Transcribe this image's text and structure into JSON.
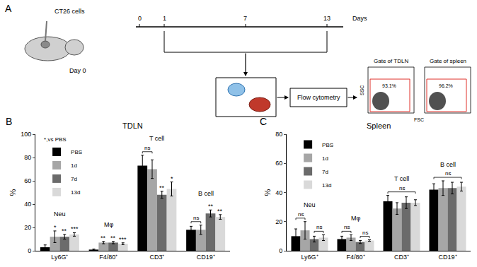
{
  "diagram": {
    "panel": "A",
    "injection": "CT26 cells",
    "injection_day": "Day 0",
    "timeline": {
      "ticks": [
        "0",
        "1",
        "7",
        "13"
      ],
      "unit": "Days"
    },
    "process": "Flow cytometry",
    "gates": [
      {
        "title": "Gate of TDLN",
        "value": "93.1%"
      },
      {
        "title": "Gate of spleen",
        "value": "96.2%"
      }
    ],
    "gate_axes": {
      "x": "FSC",
      "y": "SSC"
    }
  },
  "chart_data": [
    {
      "panel": "B",
      "type": "bar",
      "title": "TDLN",
      "y_label": "%",
      "note": "*,vs PBS",
      "categories": [
        "Ly6G⁺",
        "F4/80⁺",
        "CD3⁺",
        "CD19⁺"
      ],
      "group_labels": [
        "Neu",
        "Mφ",
        "T cell",
        "B cell"
      ],
      "series": [
        {
          "name": "PBS",
          "color": "#000000",
          "values": [
            3,
            1,
            73,
            18
          ],
          "errors": [
            2,
            0.5,
            9,
            3
          ],
          "significance": [
            null,
            null,
            null,
            null
          ]
        },
        {
          "name": "1d",
          "color": "#a6a6a6",
          "values": [
            12,
            7,
            70,
            18
          ],
          "errors": [
            5,
            1,
            8,
            4
          ],
          "significance": [
            "*",
            "**",
            null,
            null
          ]
        },
        {
          "name": "7d",
          "color": "#6b6b6b",
          "values": [
            12,
            7,
            48,
            32
          ],
          "errors": [
            2,
            1,
            3,
            3
          ],
          "significance": [
            "**",
            "**",
            "**",
            "**"
          ]
        },
        {
          "name": "13d",
          "color": "#d9d9d9",
          "values": [
            14,
            6,
            53,
            29
          ],
          "errors": [
            1.5,
            0.8,
            6,
            2
          ],
          "significance": [
            "***",
            "***",
            "*",
            "**"
          ]
        }
      ],
      "brackets": [
        {
          "category": "CD3⁺",
          "series": [
            "PBS",
            "1d"
          ],
          "label": "ns"
        },
        {
          "category": "CD19⁺",
          "series": [
            "PBS",
            "1d"
          ],
          "label": "ns"
        }
      ],
      "ylim": [
        0,
        100
      ],
      "yticks": [
        0,
        20,
        40,
        60,
        80,
        100
      ],
      "grid": false,
      "legend": "upper left"
    },
    {
      "panel": "C",
      "type": "bar",
      "title": "Spleen",
      "y_label": "%",
      "categories": [
        "Ly6G⁺",
        "F4/80⁺",
        "CD3⁺",
        "CD19⁺"
      ],
      "group_labels": [
        "Neu",
        "Mφ",
        "T cell",
        "B cell"
      ],
      "series": [
        {
          "name": "PBS",
          "color": "#000000",
          "values": [
            10,
            8,
            34,
            42
          ],
          "errors": [
            5,
            2,
            4,
            4
          ]
        },
        {
          "name": "1d",
          "color": "#a6a6a6",
          "values": [
            14,
            9,
            29,
            43
          ],
          "errors": [
            6,
            2,
            4,
            5
          ]
        },
        {
          "name": "7d",
          "color": "#6b6b6b",
          "values": [
            8,
            6,
            33,
            43
          ],
          "errors": [
            2,
            1,
            4,
            4
          ]
        },
        {
          "name": "13d",
          "color": "#d9d9d9",
          "values": [
            9,
            7,
            33,
            44
          ],
          "errors": [
            2,
            0.5,
            2,
            3
          ]
        }
      ],
      "brackets": [
        {
          "category": "Ly6G⁺",
          "series": [
            "PBS",
            "1d"
          ],
          "label": "ns"
        },
        {
          "category": "Ly6G⁺",
          "series": [
            "7d",
            "13d"
          ],
          "label": "ns"
        },
        {
          "category": "F4/80⁺",
          "series": [
            "PBS",
            "1d"
          ],
          "label": "ns"
        },
        {
          "category": "F4/80⁺",
          "series": [
            "7d",
            "13d"
          ],
          "label": "ns"
        },
        {
          "category": "CD3⁺",
          "series": [
            "PBS",
            "13d"
          ],
          "label": "ns"
        },
        {
          "category": "CD19⁺",
          "series": [
            "PBS",
            "13d"
          ],
          "label": "ns"
        }
      ],
      "ylim": [
        0,
        80
      ],
      "yticks": [
        0,
        20,
        40,
        60,
        80
      ],
      "grid": false,
      "legend": "upper left"
    }
  ]
}
